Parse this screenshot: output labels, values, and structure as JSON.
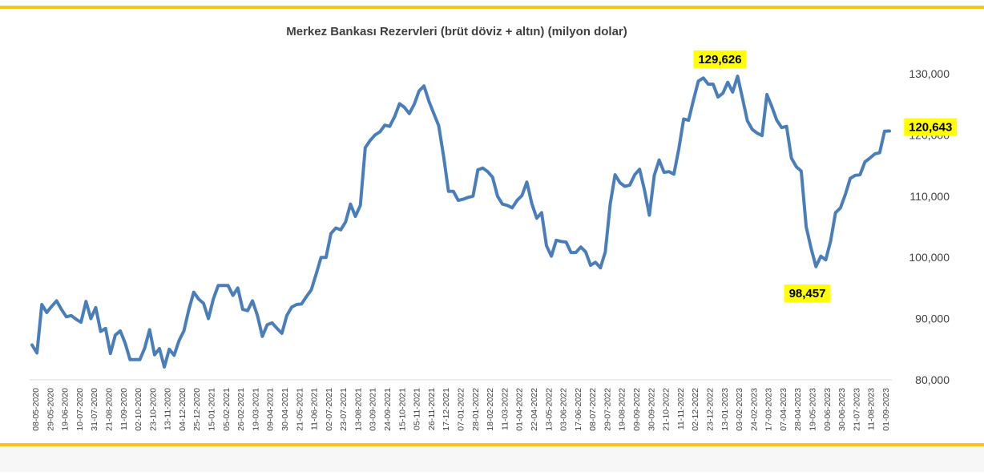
{
  "colors": {
    "line": "#4a7ebb",
    "frame": "#f5c518",
    "highlight": "#ffff00",
    "axis_text": "#404040",
    "gridline": "#d9d9d9"
  },
  "chart_data": {
    "type": "line",
    "title": "Merkez Bankası Rezervleri (brüt döviz + altın) (milyon dolar)",
    "xlabel": "",
    "ylabel": "",
    "ylim": [
      80000,
      130000
    ],
    "y_axis_side": "right",
    "y_ticks": [
      80000,
      90000,
      100000,
      110000,
      120000,
      130000
    ],
    "y_tick_labels": [
      "80,000",
      "90,000",
      "100,000",
      "110,000",
      "120,000",
      "130,000"
    ],
    "x_tick_labels": [
      "08-05-2020",
      "29-05-2020",
      "19-06-2020",
      "10-07-2020",
      "31-07-2020",
      "21-08-2020",
      "11-09-2020",
      "02-10-2020",
      "23-10-2020",
      "13-11-2020",
      "04-12-2020",
      "25-12-2020",
      "15-01-2021",
      "05-02-2021",
      "26-02-2021",
      "19-03-2021",
      "09-04-2021",
      "30-04-2021",
      "21-05-2021",
      "11-06-2021",
      "02-07-2021",
      "23-07-2021",
      "13-08-2021",
      "03-09-2021",
      "24-09-2021",
      "15-10-2021",
      "05-11-2021",
      "26-11-2021",
      "17-12-2021",
      "07-01-2022",
      "28-01-2022",
      "18-02-2022",
      "11-03-2022",
      "01-04-2022",
      "22-04-2022",
      "13-05-2022",
      "03-06-2022",
      "17-06-2022",
      "08-07-2022",
      "29-07-2022",
      "19-08-2022",
      "09-09-2022",
      "30-09-2022",
      "21-10-2022",
      "11-11-2022",
      "02-12-2022",
      "23-12-2022",
      "13-01-2023",
      "03-02-2023",
      "24-02-2023",
      "17-03-2023",
      "07-04-2023",
      "28-04-2023",
      "19-05-2023",
      "09-06-2023",
      "30-06-2023",
      "21-07-2023",
      "11-08-2023",
      "01-09-2023"
    ],
    "grid": false,
    "legend": "none",
    "series": [
      {
        "name": "",
        "values": [
          85700,
          84400,
          92300,
          91000,
          92000,
          92900,
          91500,
          90300,
          90500,
          89900,
          89400,
          92800,
          90000,
          91800,
          87900,
          88400,
          84300,
          87300,
          88000,
          86000,
          83300,
          83300,
          83300,
          85200,
          88200,
          84100,
          85100,
          82100,
          85000,
          84000,
          86400,
          88000,
          91500,
          94300,
          93200,
          92500,
          90000,
          93200,
          95400,
          95400,
          95400,
          93800,
          95000,
          91500,
          91300,
          92900,
          90500,
          87100,
          89000,
          89300,
          88400,
          87600,
          90500,
          91900,
          92300,
          92400,
          93600,
          94700,
          97300,
          100000,
          100000,
          103900,
          104800,
          104500,
          105800,
          108700,
          106700,
          108500,
          117900,
          119100,
          120000,
          120500,
          121600,
          121400,
          123000,
          125100,
          124500,
          123500,
          125000,
          127200,
          128000,
          125500,
          123500,
          121500,
          116500,
          110800,
          110800,
          109300,
          109500,
          109800,
          110000,
          114300,
          114600,
          114000,
          113100,
          110000,
          108700,
          108500,
          108100,
          109300,
          110100,
          112300,
          108800,
          106400,
          107300,
          101900,
          100200,
          102800,
          102600,
          102500,
          100800,
          100800,
          101700,
          100900,
          98700,
          99200,
          98300,
          100900,
          108700,
          113500,
          112200,
          111600,
          111800,
          113500,
          114400,
          111000,
          106900,
          113400,
          115900,
          113900,
          114000,
          113600,
          117700,
          122600,
          122400,
          125700,
          128800,
          129300,
          128300,
          128300,
          126200,
          126800,
          128600,
          127000,
          129600,
          126000,
          122300,
          120900,
          120300,
          119900,
          126600,
          124600,
          122400,
          121200,
          121400,
          116200,
          114800,
          114100,
          105000,
          101500,
          98500,
          100200,
          99600,
          102700,
          107300,
          108100,
          110300,
          112900,
          113400,
          113500,
          115600,
          116200,
          116900,
          117100,
          120600,
          120643
        ]
      }
    ],
    "annotations": [
      {
        "text": "129,626",
        "x_index": 144,
        "y": 129626
      },
      {
        "text": "98,457",
        "x_index": 162,
        "y": 98457
      },
      {
        "text": "120,643",
        "x_index": 177,
        "y": 120643
      }
    ]
  }
}
